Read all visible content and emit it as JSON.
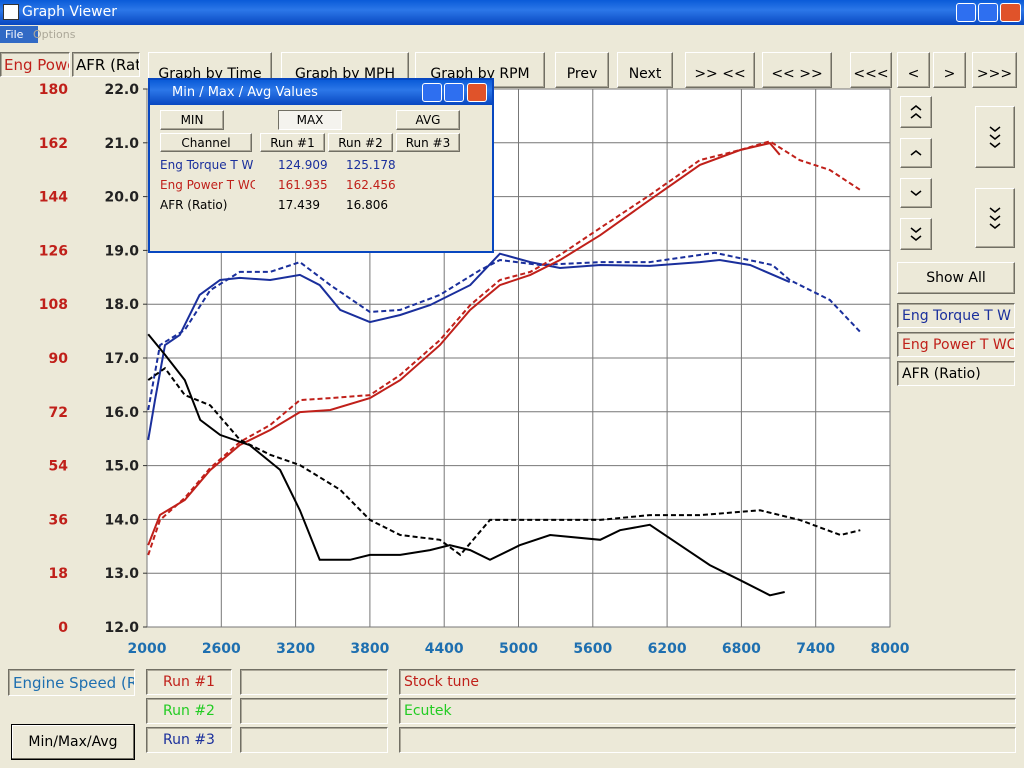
{
  "window": {
    "title": "Graph Viewer"
  },
  "menu": [
    "File",
    "Options"
  ],
  "axis_tabs": [
    "Eng Powe",
    "AFR (Rat"
  ],
  "toolbar": [
    "Graph by Time",
    "Graph by MPH",
    "Graph by RPM",
    "Prev",
    "Next",
    ">> <<",
    "<< >>",
    "<<<",
    "<",
    ">",
    ">>>"
  ],
  "side": {
    "show_all": "Show All"
  },
  "graph": {
    "xlim": [
      2000,
      8000
    ],
    "xticks": [
      2000,
      2600,
      3200,
      3800,
      4400,
      5000,
      5600,
      6200,
      6800,
      7400,
      8000
    ],
    "power_ylim": [
      0,
      180
    ],
    "power_yticks": [
      0,
      18,
      36,
      54,
      72,
      90,
      108,
      126,
      144,
      162,
      180
    ],
    "afr_ylim": [
      12,
      22
    ],
    "afr_yticks": [
      {
        "value": 12,
        "label": "12.0"
      },
      {
        "value": 13,
        "label": "13.0"
      },
      {
        "value": 14,
        "label": "14.0"
      },
      {
        "value": 15,
        "label": "15.0"
      },
      {
        "value": 16,
        "label": "16.0"
      },
      {
        "value": 17,
        "label": "17.0"
      },
      {
        "value": 18,
        "label": "18.0"
      },
      {
        "value": 19,
        "label": "19.0"
      },
      {
        "value": 20,
        "label": "20.0"
      },
      {
        "value": 21,
        "label": "21.0"
      },
      {
        "value": 22,
        "label": "22.0"
      }
    ],
    "grid": true,
    "channels": [
      {
        "name": "Eng Torque T W",
        "color": "#1a2f9c",
        "axis": "power",
        "runs": [
          {
            "x": [
              2010,
              2065,
              2145,
              2265,
              2425,
              2590,
              2750,
              2995,
              3235,
              3395,
              3560,
              3800,
              4045,
              4285,
              4610,
              4850,
              5095,
              5335,
              5660,
              6060,
              6465,
              6625,
              6870,
              7190
            ],
            "values": [
              62.6,
              75.9,
              94.3,
              97.7,
              111.1,
              116.1,
              116.8,
              116.1,
              117.8,
              114.4,
              106.1,
              102.0,
              104.4,
              107.7,
              114.4,
              124.9,
              122.1,
              120.1,
              121.1,
              120.8,
              122.1,
              122.8,
              121.1,
              115.4
            ]
          },
          {
            "x": [
              2010,
              2105,
              2305,
              2510,
              2750,
              2995,
              3235,
              3480,
              3800,
              4045,
              4365,
              4690,
              4850,
              5175,
              5660,
              6060,
              6585,
              7050,
              7190,
              7515,
              7760
            ],
            "values": [
              72.6,
              94.3,
              99.4,
              112.7,
              118.8,
              118.8,
              122.1,
              114.4,
              105.4,
              106.1,
              111.1,
              119.4,
              122.8,
              121.1,
              122.1,
              122.1,
              125.2,
              121.1,
              116.1,
              109.4,
              98.7
            ]
          }
        ]
      },
      {
        "name": "Eng Power T WC",
        "color": "#c0201a",
        "axis": "power",
        "runs": [
          {
            "x": [
              2010,
              2105,
              2305,
              2510,
              2750,
              2995,
              3235,
              3480,
              3800,
              4045,
              4365,
              4610,
              4850,
              5095,
              5335,
              5660,
              6060,
              6465,
              6790,
              7030,
              7110
            ],
            "values": [
              27.4,
              37.5,
              42.5,
              52.5,
              60.9,
              65.9,
              71.9,
              72.6,
              76.6,
              82.6,
              94.3,
              106.1,
              114.4,
              117.8,
              122.8,
              131.1,
              142.9,
              154.6,
              159.6,
              161.9,
              158.0
            ]
          },
          {
            "x": [
              2010,
              2105,
              2305,
              2510,
              2750,
              2995,
              3235,
              3480,
              3800,
              4045,
              4365,
              4610,
              4850,
              5095,
              5335,
              5660,
              6060,
              6465,
              6790,
              7030,
              7270,
              7515,
              7760
            ],
            "values": [
              24.1,
              35.8,
              43.2,
              53.2,
              61.9,
              67.6,
              75.9,
              76.6,
              77.6,
              84.3,
              96.0,
              107.7,
              116.1,
              118.8,
              124.5,
              133.5,
              144.5,
              156.2,
              159.6,
              162.5,
              156.2,
              152.9,
              146.2
            ]
          }
        ]
      },
      {
        "name": "AFR (Ratio)",
        "color": "#000000",
        "axis": "afr",
        "runs": [
          {
            "x": [
              2010,
              2145,
              2305,
              2430,
              2590,
              2830,
              3075,
              3235,
              3395,
              3640,
              3800,
              4045,
              4285,
              4445,
              4610,
              4770,
              5010,
              5255,
              5660,
              5820,
              6060,
              6305,
              6545,
              6790,
              7030,
              7150
            ],
            "values": [
              17.44,
              17.06,
              16.59,
              15.85,
              15.57,
              15.38,
              14.92,
              14.17,
              13.25,
              13.25,
              13.34,
              13.34,
              13.43,
              13.52,
              13.43,
              13.25,
              13.52,
              13.71,
              13.62,
              13.8,
              13.9,
              13.52,
              13.15,
              12.87,
              12.59,
              12.65
            ]
          },
          {
            "x": [
              2010,
              2145,
              2305,
              2510,
              2750,
              2995,
              3235,
              3560,
              3800,
              4045,
              4365,
              4530,
              4770,
              5010,
              5335,
              5660,
              6060,
              6465,
              6950,
              7270,
              7600,
              7760
            ],
            "values": [
              16.59,
              16.81,
              16.31,
              16.12,
              15.48,
              15.2,
              15.01,
              14.55,
              13.99,
              13.71,
              13.62,
              13.34,
              13.99,
              13.99,
              13.99,
              13.99,
              14.08,
              14.08,
              14.17,
              13.99,
              13.71,
              13.8
            ]
          }
        ]
      }
    ]
  },
  "dialog": {
    "title": "Min / Max / Avg Values",
    "buttons": [
      "MIN",
      "MAX",
      "AVG"
    ],
    "header": [
      "Channel",
      "Run #1",
      "Run #2",
      "Run #3"
    ],
    "rows": [
      [
        "Eng Torque T W",
        124.909,
        125.178
      ],
      [
        "Eng Power T WC",
        161.935,
        162.456
      ],
      [
        "AFR (Ratio)",
        17.439,
        16.806
      ]
    ]
  },
  "bottom": {
    "x_channel": "Engine Speed (Rl",
    "runs": [
      {
        "label": "Run #1",
        "color": "#c0201a",
        "note": "Stock tune"
      },
      {
        "label": "Run #2",
        "color": "#22cc22",
        "note": "Ecutek"
      },
      {
        "label": "Run #3",
        "color": "#1a2f9c"
      }
    ],
    "button": "Min/Max/Avg"
  }
}
